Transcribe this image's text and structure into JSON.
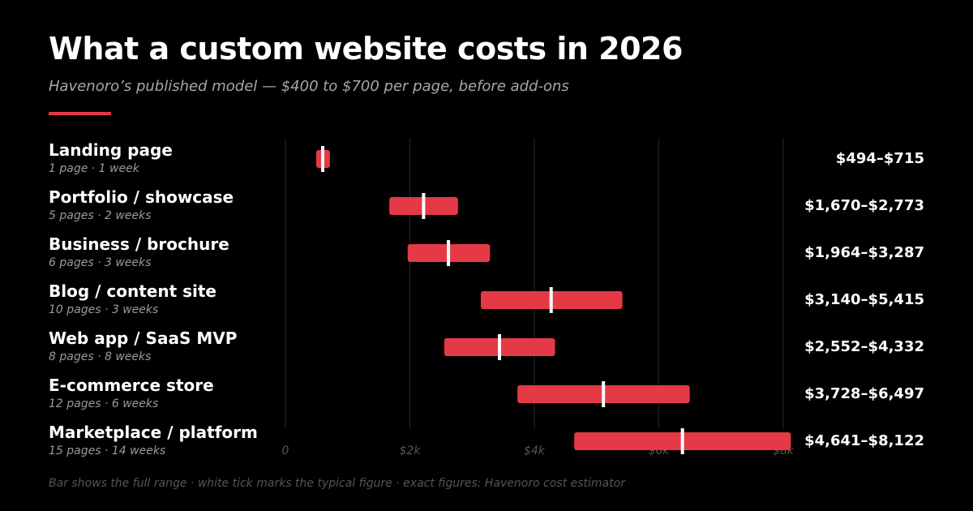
{
  "header": {
    "title": "What a custom website costs in 2026",
    "subtitle": "Havenoro’s published model — $400 to $700 per page, before add-ons"
  },
  "colors": {
    "bar": "#e63946",
    "tick": "#ffffff",
    "accent": "#e63946",
    "gridline": "#2a2a2a",
    "axis_label": "#555555"
  },
  "footer": {
    "note": "Bar shows the full range · white tick marks the typical figure · exact figures: Havenoro cost estimator"
  },
  "chart_data": {
    "type": "bar",
    "orientation": "horizontal-range",
    "xlim": [
      0,
      8000
    ],
    "x_ticks": [
      0,
      2000,
      4000,
      6000,
      8000
    ],
    "x_tick_labels": [
      "0",
      "$2k",
      "$4k",
      "$6k",
      "$8k"
    ],
    "grid": true,
    "rows": [
      {
        "name": "Landing page",
        "meta": "1 page · 1 week",
        "low": 494,
        "high": 715,
        "typical": 600,
        "range_label": "$494–$715"
      },
      {
        "name": "Portfolio / showcase",
        "meta": "5 pages · 2 weeks",
        "low": 1670,
        "high": 2773,
        "typical": 2220,
        "range_label": "$1,670–$2,773"
      },
      {
        "name": "Business / brochure",
        "meta": "6 pages · 3 weeks",
        "low": 1964,
        "high": 3287,
        "typical": 2620,
        "range_label": "$1,964–$3,287"
      },
      {
        "name": "Blog / content site",
        "meta": "10 pages · 3 weeks",
        "low": 3140,
        "high": 5415,
        "typical": 4270,
        "range_label": "$3,140–$5,415"
      },
      {
        "name": "Web app / SaaS MVP",
        "meta": "8 pages · 8 weeks",
        "low": 2552,
        "high": 4332,
        "typical": 3440,
        "range_label": "$2,552–$4,332"
      },
      {
        "name": "E-commerce store",
        "meta": "12 pages · 6 weeks",
        "low": 3728,
        "high": 6497,
        "typical": 5110,
        "range_label": "$3,728–$6,497"
      },
      {
        "name": "Marketplace / platform",
        "meta": "15 pages · 14 weeks",
        "low": 4641,
        "high": 8122,
        "typical": 6380,
        "range_label": "$4,641–$8,122"
      }
    ]
  }
}
